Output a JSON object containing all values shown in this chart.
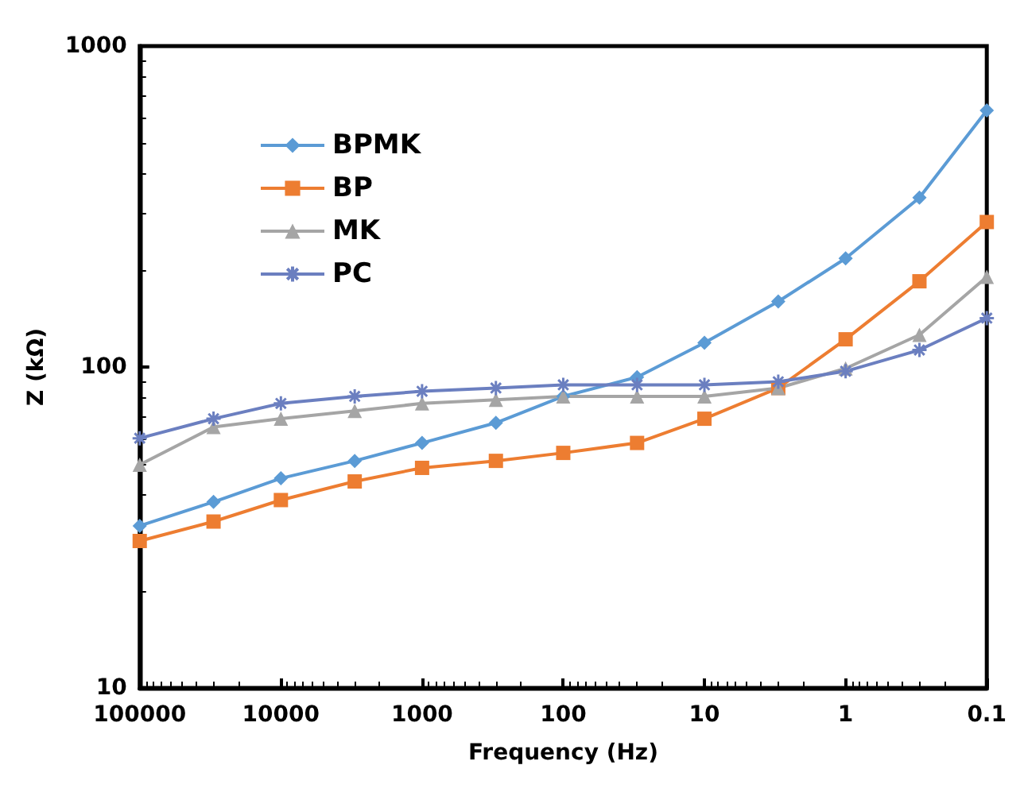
{
  "chart_data": {
    "type": "line",
    "xlabel": "Frequency (Hz)",
    "ylabel": "Z (kΩ)",
    "x": [
      100000,
      30000,
      10000,
      3000,
      1000,
      300,
      100,
      30,
      10,
      3,
      1,
      0.3,
      0.1
    ],
    "series": [
      {
        "name": "BPMK",
        "color": "#5b9bd5",
        "marker": "diamond",
        "values": [
          32,
          38,
          45,
          51,
          58,
          67,
          81,
          93,
          119,
          160,
          218,
          337,
          630
        ]
      },
      {
        "name": "BP",
        "color": "#ed7d31",
        "marker": "square",
        "values": [
          28.7,
          33,
          38.5,
          44,
          48.5,
          51,
          54,
          58,
          69,
          86,
          122,
          185,
          283
        ]
      },
      {
        "name": "MK",
        "color": "#a5a5a5",
        "marker": "triangle",
        "values": [
          49.6,
          65,
          69,
          73,
          77,
          79,
          81,
          81,
          81,
          86,
          99,
          126,
          191
        ]
      },
      {
        "name": "PC",
        "color": "#6b7fc0",
        "marker": "cross",
        "values": [
          60,
          69,
          77,
          81,
          84,
          86,
          88,
          88,
          88,
          90,
          97,
          113,
          142
        ]
      }
    ],
    "log": "xy",
    "xlim": [
      100000,
      0.1
    ],
    "xticks": [
      100000,
      10000,
      1000,
      100,
      10,
      1,
      0.1
    ],
    "ylim": [
      10,
      1000
    ],
    "yticks": [
      10,
      100,
      1000
    ],
    "grid": false,
    "legend": "top left"
  }
}
